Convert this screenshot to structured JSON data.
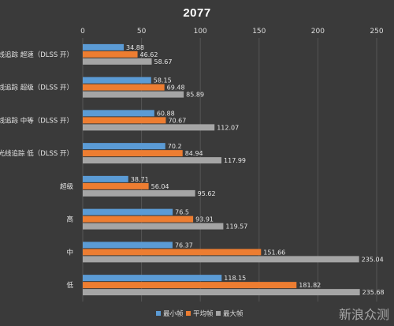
{
  "chart_data": {
    "type": "bar",
    "orientation": "horizontal",
    "title": "2077",
    "categories": [
      "光线追踪 超速（DLSS 开）",
      "光线追踪 超级（DLSS 开）",
      "光线追踪 中等（DLSS 开）",
      "光线追踪 低（DLSS 开）",
      "超级",
      "高",
      "中",
      "低"
    ],
    "series": [
      {
        "name": "最小帧",
        "color": "#5b9bd5",
        "values": [
          34.88,
          58.15,
          60.88,
          70.2,
          38.71,
          76.5,
          76.37,
          118.15
        ]
      },
      {
        "name": "平均帧",
        "color": "#ed7d31",
        "values": [
          46.62,
          69.48,
          70.67,
          84.94,
          56.04,
          93.91,
          151.66,
          181.82
        ]
      },
      {
        "name": "最大帧",
        "color": "#a5a5a5",
        "values": [
          58.67,
          85.89,
          112.07,
          117.99,
          95.62,
          119.57,
          235.04,
          235.68
        ]
      }
    ],
    "xlim": [
      0,
      250
    ],
    "xticks": [
      0,
      50,
      100,
      150,
      200,
      250
    ],
    "grid": true,
    "xaxis_position": "top",
    "legend_position": "bottom"
  },
  "watermark": {
    "text": "新浪众测"
  }
}
